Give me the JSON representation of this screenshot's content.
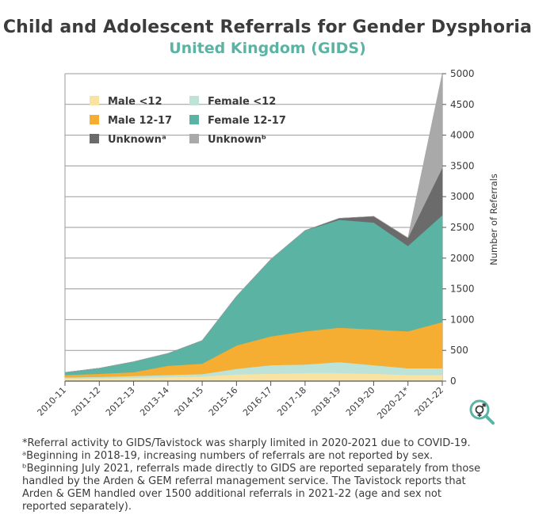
{
  "title": "Child and Adolescent Referrals for Gender Dysphoria",
  "subtitle": "United Kingdom (GIDS)",
  "chart_data": {
    "type": "area",
    "stacked": true,
    "title": "Child and Adolescent Referrals for Gender Dysphoria",
    "subtitle": "United Kingdom (GIDS)",
    "xlabel": "",
    "ylabel": "Number of Referrals",
    "ylim": [
      0,
      5000
    ],
    "yticks": [
      0,
      500,
      1000,
      1500,
      2000,
      2500,
      3000,
      3500,
      4000,
      4500,
      5000
    ],
    "y_axis_side": "right",
    "grid": true,
    "legend_position": "top-left",
    "categories": [
      "2010-11",
      "2011-12",
      "2012-13",
      "2013-14",
      "2014-15",
      "2015-16",
      "2016-17",
      "2017-18",
      "2018-19",
      "2019-20",
      "2020-21*",
      "2021-22"
    ],
    "series": [
      {
        "name": "Male <12",
        "color": "#f9e3a3",
        "values": [
          40,
          45,
          55,
          65,
          75,
          110,
          120,
          130,
          130,
          120,
          100,
          100
        ]
      },
      {
        "name": "Female <12",
        "color": "#bde3d9",
        "values": [
          20,
          25,
          30,
          35,
          40,
          90,
          140,
          140,
          180,
          140,
          110,
          110
        ]
      },
      {
        "name": "Male 12-17",
        "color": "#f5ad32",
        "values": [
          40,
          50,
          60,
          150,
          170,
          380,
          470,
          540,
          560,
          580,
          600,
          750
        ]
      },
      {
        "name": "Female 12-17",
        "color": "#5bb3a4",
        "values": [
          40,
          90,
          170,
          200,
          375,
          800,
          1250,
          1640,
          1755,
          1740,
          1390,
          1740
        ]
      },
      {
        "name": "Unknownᵃ",
        "color": "#6b6b6b",
        "values": [
          0,
          0,
          0,
          0,
          0,
          0,
          0,
          0,
          25,
          100,
          130,
          770
        ]
      },
      {
        "name": "Unknownᵇ",
        "color": "#a9a9a9",
        "values": [
          0,
          0,
          0,
          0,
          0,
          0,
          0,
          0,
          0,
          0,
          0,
          1530
        ]
      }
    ]
  },
  "footnotes": [
    "*Referral activity to GIDS/Tavistock was sharply limited in 2020-2021 due to COVID-19.",
    "ᵃBeginning in 2018-19, increasing numbers of referrals are not reported by sex.",
    "ᵇBeginning July 2021, referrals made directly to GIDS are reported separately from those",
    "handled by the Arden & GEM referral management service. The Tavistock reports that",
    "Arden & GEM handled over 1500 additional referrals in 2021-22 (age and sex not",
    "reported separately)."
  ],
  "logo_icon": "gender-magnifier-icon",
  "colors": {
    "title": "#3c3c3c",
    "subtitle": "#5bb3a4",
    "grid": "#9a9a9a",
    "axis": "#555555"
  }
}
